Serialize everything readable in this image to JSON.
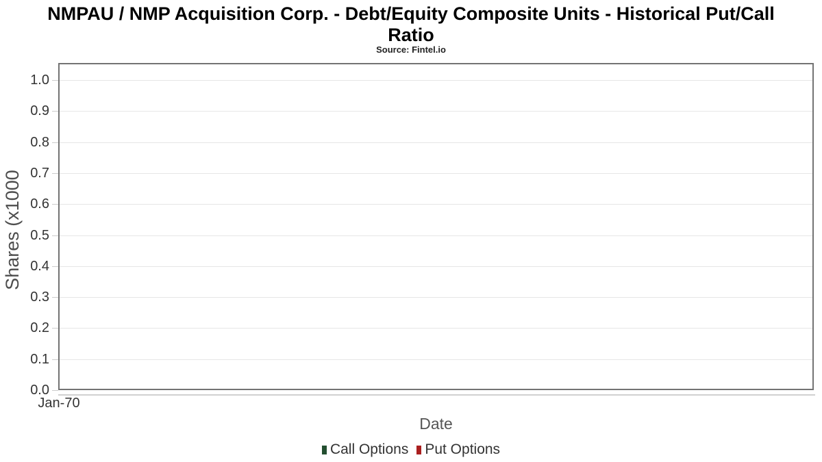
{
  "chart": {
    "title": "NMPAU / NMP Acquisition Corp. - Debt/Equity Composite Units - Historical Put/Call Ratio",
    "subtitle": "Source: Fintel.io",
    "y_axis": {
      "title": "Shares (x1000",
      "ticks": [
        "0.0",
        "0.1",
        "0.2",
        "0.3",
        "0.4",
        "0.5",
        "0.6",
        "0.7",
        "0.8",
        "0.9",
        "1.0"
      ]
    },
    "x_axis": {
      "title": "Date",
      "ticks": [
        "Jan-70"
      ]
    },
    "legend": {
      "items": [
        {
          "label": "Call Options",
          "color": "#234f30"
        },
        {
          "label": "Put Options",
          "color": "#aa1f1f"
        }
      ]
    },
    "colors": {
      "title": "#000000",
      "subtitle": "#222222",
      "plot_border": "#737373",
      "gridline": "#e6e6e6",
      "tick": "#cccccc",
      "axis_line": "#d0d0d0",
      "tick_label": "#333333",
      "axis_title": "#555555",
      "legend_label": "#333333",
      "background": "#ffffff"
    }
  },
  "chart_data": {
    "type": "bar",
    "title": "NMPAU / NMP Acquisition Corp. - Debt/Equity Composite Units - Historical Put/Call Ratio",
    "subtitle": "Source: Fintel.io",
    "xlabel": "Date",
    "ylabel": "Shares (x1000",
    "categories": [
      "Jan-70"
    ],
    "series": [
      {
        "name": "Call Options",
        "color": "#234f30",
        "values": []
      },
      {
        "name": "Put Options",
        "color": "#aa1f1f",
        "values": []
      }
    ],
    "ylim": [
      0.0,
      1.0
    ],
    "y_tick_step": 0.1,
    "grid": true,
    "legend_position": "bottom",
    "note": "Plot area is empty; no bars are drawn for either series."
  }
}
